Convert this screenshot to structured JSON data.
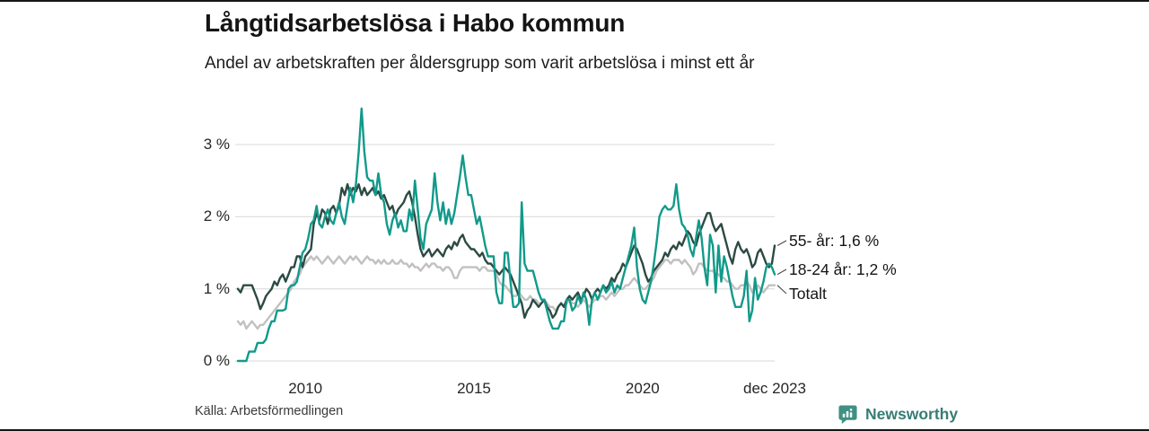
{
  "header": {
    "title": "Långtidsarbetslösa i Habo kommun",
    "subtitle": "Andel av arbetskraften per åldersgrupp som varit arbetslösa i minst ett år"
  },
  "footer": {
    "source": "Källa: Arbetsförmedlingen",
    "brand": "Newsworthy"
  },
  "colors": {
    "series_55": "#2c4a43",
    "series_18_24": "#119a8a",
    "series_total": "#c1c1c1",
    "gridline": "#e0e0e0",
    "leader": "#4a4a4a",
    "brand_teal": "#3f9183",
    "border": "#161616"
  },
  "chart_data": {
    "type": "line",
    "title": "Långtidsarbetslösa i Habo kommun",
    "subtitle": "Andel av arbetskraften per åldersgrupp som varit arbetslösa i minst ett år",
    "xlabel": "",
    "ylabel": "",
    "x_unit": "monthly",
    "x_start_year": 2008,
    "x_end": "dec 2023",
    "ylim": [
      0,
      3.6
    ],
    "grid": true,
    "legend_position": "right-annotations",
    "yticks": [
      {
        "label": "0 %",
        "value": 0
      },
      {
        "label": "1 %",
        "value": 1
      },
      {
        "label": "2 %",
        "value": 2
      },
      {
        "label": "3 %",
        "value": 3
      }
    ],
    "xticks": [
      {
        "label": "2010",
        "year": 2010
      },
      {
        "label": "2015",
        "year": 2015
      },
      {
        "label": "2020",
        "year": 2020
      },
      {
        "label": "dec 2023",
        "year": 2023.9167
      }
    ],
    "series": [
      {
        "name": "55- år",
        "end_label": "55- år: 1,6 %",
        "end_value_text": "1,6 %",
        "color": "#2c4a43",
        "values": [
          1.0,
          0.95,
          1.05,
          1.05,
          1.05,
          1.05,
          0.95,
          0.85,
          0.72,
          0.8,
          0.9,
          0.95,
          1.0,
          1.1,
          1.05,
          1.15,
          1.2,
          1.1,
          1.2,
          1.3,
          1.3,
          1.45,
          1.45,
          1.3,
          1.45,
          1.5,
          1.55,
          1.9,
          2.05,
          1.95,
          2.1,
          2.05,
          1.9,
          2.1,
          2.15,
          2.05,
          2.15,
          2.4,
          2.3,
          2.45,
          2.3,
          2.4,
          2.35,
          2.45,
          2.3,
          2.4,
          2.3,
          2.35,
          2.4,
          2.3,
          2.35,
          2.25,
          2.3,
          2.2,
          2.1,
          2.15,
          2.0,
          2.1,
          2.15,
          2.2,
          2.3,
          2.35,
          2.2,
          2.0,
          1.75,
          1.55,
          1.45,
          1.5,
          1.55,
          1.45,
          1.5,
          1.55,
          1.5,
          1.45,
          1.55,
          1.6,
          1.55,
          1.65,
          1.6,
          1.7,
          1.75,
          1.65,
          1.6,
          1.55,
          1.55,
          1.5,
          1.45,
          1.5,
          1.4,
          1.35,
          1.35,
          1.3,
          1.25,
          1.2,
          1.25,
          1.3,
          1.25,
          1.2,
          1.1,
          1.0,
          0.9,
          0.8,
          0.6,
          0.7,
          0.75,
          0.85,
          0.8,
          0.75,
          0.8,
          0.85,
          0.75,
          0.7,
          0.6,
          0.65,
          0.75,
          0.8,
          0.75,
          0.85,
          0.9,
          0.85,
          0.9,
          0.95,
          0.85,
          0.9,
          1.0,
          0.95,
          0.85,
          0.95,
          1.0,
          0.95,
          1.05,
          1.0,
          1.05,
          1.15,
          1.1,
          1.2,
          1.25,
          1.35,
          1.3,
          1.4,
          1.5,
          1.6,
          1.55,
          1.45,
          1.35,
          1.2,
          1.1,
          1.15,
          1.25,
          1.3,
          1.35,
          1.4,
          1.5,
          1.45,
          1.55,
          1.6,
          1.55,
          1.65,
          1.6,
          1.7,
          1.8,
          1.75,
          1.65,
          1.6,
          1.75,
          1.85,
          1.95,
          2.05,
          2.05,
          1.9,
          1.8,
          1.85,
          1.9,
          1.75,
          1.6,
          1.45,
          1.35,
          1.55,
          1.65,
          1.55,
          1.5,
          1.55,
          1.45,
          1.3,
          1.35,
          1.5,
          1.55,
          1.45,
          1.35,
          1.3,
          1.35,
          1.6
        ]
      },
      {
        "name": "18-24 år",
        "end_label": "18-24 år: 1,2 %",
        "end_value_text": "1,2 %",
        "color": "#119a8a",
        "values": [
          0,
          0,
          0,
          0,
          0.13,
          0.13,
          0.13,
          0.25,
          0.25,
          0.25,
          0.3,
          0.45,
          0.55,
          0.55,
          0.7,
          0.7,
          0.7,
          0.72,
          1.0,
          1.05,
          1.05,
          1.1,
          1.3,
          1.5,
          1.55,
          1.7,
          1.9,
          1.95,
          2.15,
          1.9,
          1.85,
          2.0,
          2.1,
          1.95,
          1.9,
          2.05,
          2.2,
          2.0,
          1.9,
          2.15,
          2.4,
          2.2,
          2.45,
          2.9,
          3.5,
          2.9,
          2.55,
          2.5,
          2.5,
          2.3,
          2.6,
          2.3,
          2.2,
          1.9,
          1.75,
          1.95,
          2.05,
          1.85,
          1.95,
          1.8,
          1.8,
          2.1,
          1.95,
          2.5,
          2.1,
          1.7,
          1.55,
          1.9,
          2.0,
          2.1,
          2.6,
          2.2,
          1.95,
          2.2,
          1.9,
          2.1,
          1.9,
          2.05,
          2.3,
          2.55,
          2.85,
          2.55,
          2.3,
          2.3,
          2.1,
          1.9,
          2.0,
          1.8,
          1.6,
          1.45,
          1.45,
          1.45,
          0.95,
          0.8,
          0.8,
          1.5,
          1.5,
          1.1,
          0.75,
          0.75,
          0.8,
          2.2,
          1.35,
          1.25,
          1.25,
          1.25,
          1.1,
          0.95,
          0.85,
          0.85,
          0.7,
          0.55,
          0.45,
          0.45,
          0.45,
          0.55,
          0.55,
          0.85,
          0.85,
          0.7,
          0.75,
          0.9,
          0.8,
          0.95,
          0.85,
          0.5,
          0.85,
          0.95,
          0.85,
          0.95,
          1.05,
          0.95,
          1.0,
          1.1,
          0.95,
          1.05,
          1.0,
          1.15,
          1.3,
          1.45,
          1.6,
          1.85,
          1.3,
          1.0,
          0.85,
          0.8,
          0.95,
          1.1,
          1.35,
          1.65,
          2.0,
          2.1,
          2.15,
          2.1,
          2.1,
          2.15,
          2.45,
          2.1,
          1.9,
          1.85,
          1.75,
          1.55,
          1.45,
          1.7,
          1.95,
          1.7,
          1.3,
          1.05,
          1.75,
          1.6,
          0.95,
          1.6,
          1.1,
          1.45,
          1.3,
          1.1,
          0.9,
          0.75,
          0.75,
          0.75,
          0.9,
          1.25,
          0.55,
          0.7,
          1.15,
          0.85,
          0.95,
          1.1,
          1.3,
          1.35,
          1.3,
          1.2
        ]
      },
      {
        "name": "Totalt",
        "end_label": "Totalt",
        "end_value_text": "",
        "color": "#c1c1c1",
        "values": [
          0.55,
          0.5,
          0.55,
          0.45,
          0.5,
          0.55,
          0.5,
          0.45,
          0.5,
          0.5,
          0.55,
          0.6,
          0.65,
          0.7,
          0.75,
          0.8,
          0.85,
          0.9,
          0.95,
          1.0,
          1.1,
          1.15,
          1.2,
          1.3,
          1.35,
          1.4,
          1.45,
          1.4,
          1.45,
          1.4,
          1.35,
          1.4,
          1.45,
          1.4,
          1.35,
          1.4,
          1.45,
          1.4,
          1.35,
          1.4,
          1.45,
          1.4,
          1.45,
          1.4,
          1.35,
          1.4,
          1.45,
          1.4,
          1.4,
          1.35,
          1.4,
          1.35,
          1.4,
          1.35,
          1.35,
          1.4,
          1.35,
          1.35,
          1.4,
          1.35,
          1.35,
          1.3,
          1.35,
          1.3,
          1.3,
          1.25,
          1.3,
          1.35,
          1.3,
          1.35,
          1.35,
          1.3,
          1.3,
          1.25,
          1.3,
          1.3,
          1.25,
          1.15,
          1.15,
          1.25,
          1.3,
          1.3,
          1.3,
          1.3,
          1.3,
          1.3,
          1.25,
          1.3,
          1.3,
          1.25,
          1.25,
          1.25,
          1.2,
          1.1,
          1.05,
          1.05,
          1.0,
          0.95,
          0.9,
          0.9,
          0.95,
          0.9,
          0.85,
          0.85,
          0.9,
          0.85,
          0.85,
          0.8,
          0.8,
          0.85,
          0.8,
          0.75,
          0.75,
          0.7,
          0.75,
          0.8,
          0.75,
          0.8,
          0.85,
          0.8,
          0.8,
          0.75,
          0.8,
          0.85,
          0.8,
          0.75,
          0.8,
          0.85,
          0.85,
          0.9,
          0.9,
          0.85,
          0.9,
          0.95,
          0.9,
          0.95,
          1.0,
          1.0,
          1.05,
          1.05,
          1.1,
          1.15,
          1.1,
          1.05,
          1.0,
          1.0,
          1.05,
          1.1,
          1.15,
          1.25,
          1.3,
          1.35,
          1.4,
          1.4,
          1.35,
          1.4,
          1.4,
          1.4,
          1.35,
          1.4,
          1.35,
          1.3,
          1.2,
          1.25,
          1.35,
          1.35,
          1.3,
          1.25,
          1.25,
          1.25,
          1.2,
          1.2,
          1.15,
          1.15,
          1.1,
          1.1,
          1.05,
          1.0,
          1.0,
          1.05,
          1.05,
          1.1,
          1.05,
          0.95,
          1.0,
          1.05,
          1.0,
          0.95,
          1.0,
          1.05,
          1.05,
          1.05
        ]
      }
    ]
  }
}
